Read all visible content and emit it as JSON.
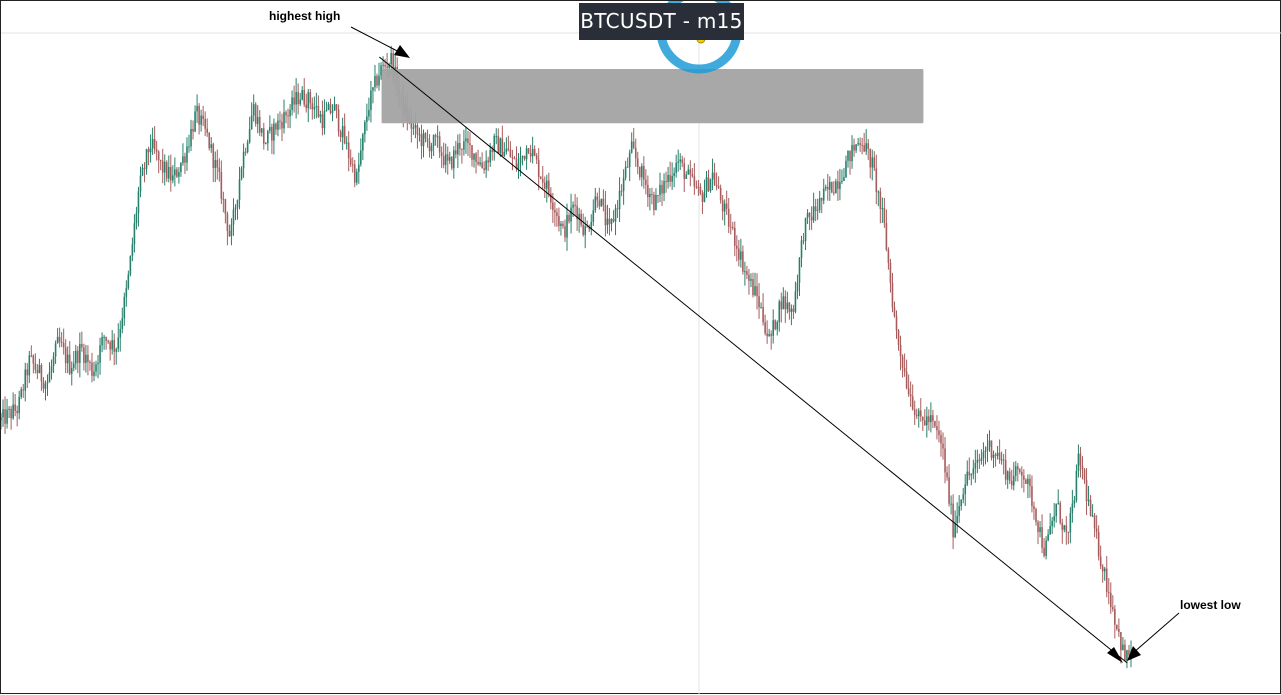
{
  "chart_data": {
    "type": "candlestick",
    "title": "BTCUSDT - m15",
    "xlabel": "",
    "ylabel": "",
    "grid": false,
    "annotations": {
      "highest": "highest high",
      "lowest": "lowest low"
    },
    "colors": {
      "up": "#26806b",
      "down": "#a65c5c",
      "zone": "#a3a3a3",
      "title_bg": "#2a2e39",
      "cursor_ring": "#1e9bd7"
    },
    "ylim": [
      0,
      100
    ],
    "path": [
      [
        0,
        40
      ],
      [
        3,
        42
      ],
      [
        5,
        50
      ],
      [
        8,
        46
      ],
      [
        10,
        53
      ],
      [
        12,
        49
      ],
      [
        14,
        52
      ],
      [
        16,
        48
      ],
      [
        18,
        54
      ],
      [
        20,
        52
      ],
      [
        22,
        62
      ],
      [
        24,
        78
      ],
      [
        26,
        86
      ],
      [
        28,
        82
      ],
      [
        30,
        80
      ],
      [
        32,
        84
      ],
      [
        34,
        91
      ],
      [
        36,
        87
      ],
      [
        38,
        80
      ],
      [
        40,
        70
      ],
      [
        42,
        83
      ],
      [
        44,
        92
      ],
      [
        46,
        86
      ],
      [
        48,
        89
      ],
      [
        50,
        91
      ],
      [
        52,
        94
      ],
      [
        54,
        93
      ],
      [
        56,
        90
      ],
      [
        58,
        92
      ],
      [
        60,
        86
      ],
      [
        62,
        80
      ],
      [
        64,
        92
      ],
      [
        66,
        98
      ],
      [
        68,
        100
      ],
      [
        70,
        92
      ],
      [
        72,
        88
      ],
      [
        74,
        86
      ],
      [
        76,
        86
      ],
      [
        78,
        82
      ],
      [
        80,
        86
      ],
      [
        82,
        85
      ],
      [
        84,
        82
      ],
      [
        86,
        86
      ],
      [
        88,
        85
      ],
      [
        90,
        82
      ],
      [
        92,
        86
      ],
      [
        94,
        81
      ],
      [
        96,
        77
      ],
      [
        98,
        71
      ],
      [
        100,
        76
      ],
      [
        102,
        71
      ],
      [
        104,
        78
      ],
      [
        106,
        71
      ],
      [
        108,
        78
      ],
      [
        110,
        85
      ],
      [
        112,
        80
      ],
      [
        114,
        76
      ],
      [
        116,
        80
      ],
      [
        118,
        83
      ],
      [
        120,
        80
      ],
      [
        122,
        77
      ],
      [
        124,
        81
      ],
      [
        126,
        75
      ],
      [
        128,
        70
      ],
      [
        130,
        64
      ],
      [
        132,
        60
      ],
      [
        134,
        53
      ],
      [
        136,
        60
      ],
      [
        138,
        58
      ],
      [
        140,
        72
      ],
      [
        142,
        75
      ],
      [
        144,
        78
      ],
      [
        146,
        80
      ],
      [
        148,
        84
      ],
      [
        150,
        87
      ],
      [
        152,
        82
      ],
      [
        154,
        72
      ],
      [
        156,
        55
      ],
      [
        158,
        46
      ],
      [
        160,
        40
      ],
      [
        162,
        40
      ],
      [
        164,
        36
      ],
      [
        166,
        22
      ],
      [
        168,
        30
      ],
      [
        170,
        32
      ],
      [
        172,
        36
      ],
      [
        174,
        34
      ],
      [
        176,
        30
      ],
      [
        178,
        32
      ],
      [
        180,
        26
      ],
      [
        182,
        18
      ],
      [
        184,
        26
      ],
      [
        186,
        20
      ],
      [
        188,
        34
      ],
      [
        190,
        24
      ],
      [
        192,
        16
      ],
      [
        194,
        8
      ],
      [
        196,
        0
      ],
      [
        197,
        2
      ]
    ],
    "zone": {
      "x": [
        66,
        150
      ],
      "y": [
        90,
        98
      ]
    },
    "trendline": [
      [
        67,
        100
      ],
      [
        196,
        0
      ]
    ]
  }
}
